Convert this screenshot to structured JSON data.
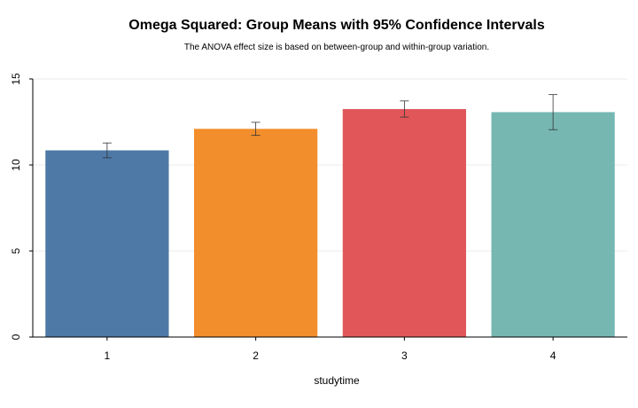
{
  "chart_data": {
    "type": "bar",
    "title": "Omega Squared: Group Means with 95% Confidence Intervals",
    "subtitle": "The ANOVA effect size is based on between-group and within-group variation.",
    "xlabel": "studytime",
    "ylabel": "",
    "categories": [
      "1",
      "2",
      "3",
      "4"
    ],
    "values": [
      10.85,
      12.1,
      13.25,
      13.07
    ],
    "ci_lower": [
      10.42,
      11.72,
      12.78,
      12.05
    ],
    "ci_upper": [
      11.28,
      12.48,
      13.72,
      14.09
    ],
    "colors": [
      "#4e79a7",
      "#f28e2b",
      "#e15759",
      "#76b7b2"
    ],
    "ylim": [
      0,
      15
    ],
    "yticks": [
      "0",
      "5",
      "10",
      "15"
    ],
    "grid": true,
    "legend": "none"
  }
}
